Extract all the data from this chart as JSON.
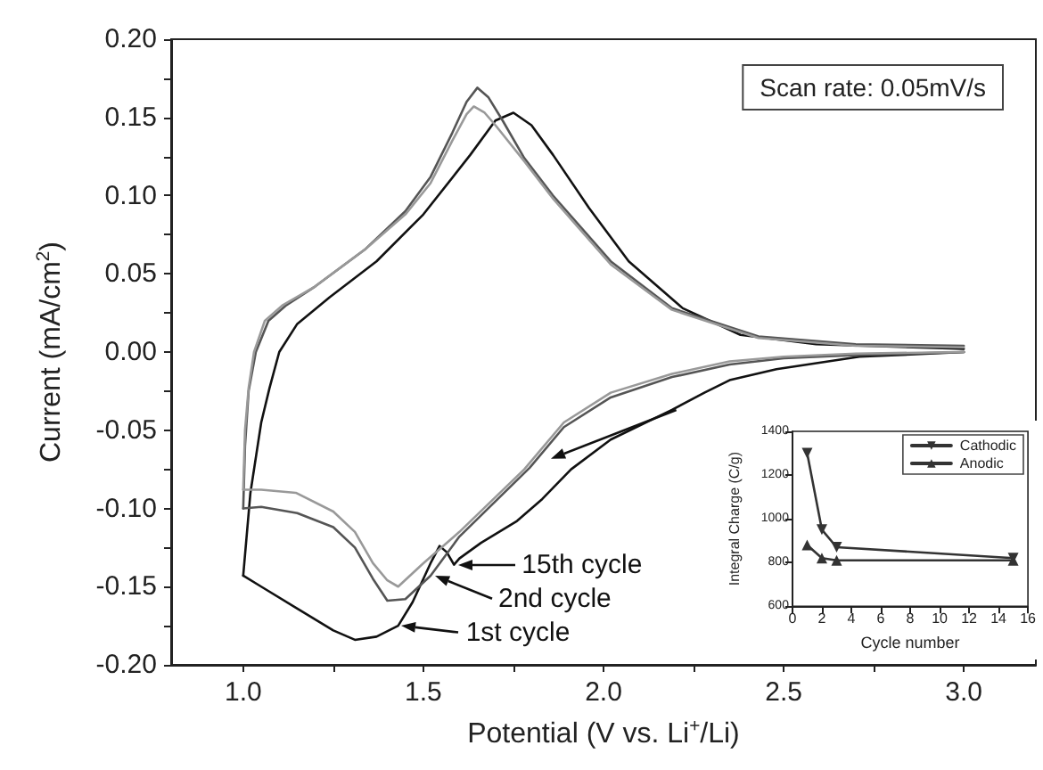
{
  "chart_data": [
    {
      "type": "line",
      "xlabel": "Potential (V vs. Li$^{+}$/Li)",
      "ylabel": "Current (mA/cm$^{2}$)",
      "xlim": [
        0.8,
        3.2
      ],
      "ylim": [
        -0.2,
        0.2
      ],
      "xticks": [
        {
          "value": 1.0,
          "label": "1.0"
        },
        {
          "value": 1.25,
          "label": null
        },
        {
          "value": 1.5,
          "label": "1.5"
        },
        {
          "value": 1.75,
          "label": null
        },
        {
          "value": 2.0,
          "label": "2.0"
        },
        {
          "value": 2.25,
          "label": null
        },
        {
          "value": 2.5,
          "label": "2.5"
        },
        {
          "value": 2.75,
          "label": null
        },
        {
          "value": 3.0,
          "label": "3.0"
        }
      ],
      "yticks": [
        {
          "value": -0.2,
          "label": "-0.20"
        },
        {
          "value": -0.175,
          "label": null
        },
        {
          "value": -0.15,
          "label": "-0.15"
        },
        {
          "value": -0.125,
          "label": null
        },
        {
          "value": -0.1,
          "label": "-0.10"
        },
        {
          "value": -0.075,
          "label": null
        },
        {
          "value": -0.05,
          "label": "-0.05"
        },
        {
          "value": -0.025,
          "label": null
        },
        {
          "value": 0,
          "label": "0.00"
        },
        {
          "value": 0.025,
          "label": null
        },
        {
          "value": 0.05,
          "label": "0.05"
        },
        {
          "value": 0.075,
          "label": null
        },
        {
          "value": 0.1,
          "label": "0.10"
        },
        {
          "value": 0.125,
          "label": null
        },
        {
          "value": 0.15,
          "label": "0.15"
        },
        {
          "value": 0.175,
          "label": null
        },
        {
          "value": 0.2,
          "label": "0.20"
        }
      ],
      "grid": false,
      "legend": false,
      "marker": "none",
      "line_style": "solid",
      "annotations": [
        "Scan rate: 0.05mV/s",
        {
          "text": "1st cycle",
          "x": 1.43,
          "y": -0.175
        },
        {
          "text": "2nd cycle",
          "x": 1.52,
          "y": -0.143
        },
        {
          "text": "15th cycle",
          "x": 1.585,
          "y": -0.136
        }
      ],
      "series": [
        {
          "color": "#111111",
          "x": [
            1.0,
            1.02,
            1.05,
            1.073,
            1.1,
            1.15,
            1.24,
            1.37,
            1.5,
            1.63,
            1.7,
            1.75,
            1.8,
            1.86,
            1.96,
            2.07,
            2.22,
            2.38,
            2.59,
            3.0
          ],
          "values": [
            -0.143,
            -0.09,
            -0.045,
            -0.023,
            0.0,
            0.018,
            0.035,
            0.058,
            0.088,
            0.126,
            0.148,
            0.153,
            0.145,
            0.126,
            0.092,
            0.058,
            0.028,
            0.011,
            0.005,
            0.002
          ]
        },
        {
          "color": "#111111",
          "x": [
            1.0,
            1.05,
            1.15,
            1.25,
            1.31,
            1.37,
            1.43,
            1.47,
            1.52,
            1.545,
            1.565,
            1.585,
            1.6,
            1.66,
            1.76,
            1.83,
            1.91,
            2.02,
            2.19,
            2.28,
            2.35,
            2.48,
            2.71,
            3.0
          ],
          "values": [
            -0.143,
            -0.15,
            -0.164,
            -0.178,
            -0.184,
            -0.182,
            -0.175,
            -0.16,
            -0.135,
            -0.124,
            -0.128,
            -0.136,
            -0.132,
            -0.122,
            -0.108,
            -0.094,
            -0.075,
            -0.056,
            -0.037,
            -0.026,
            -0.018,
            -0.011,
            -0.003,
            0.0
          ]
        },
        {
          "color": "#555555",
          "x": [
            1.0,
            1.005,
            1.015,
            1.035,
            1.07,
            1.12,
            1.2,
            1.34,
            1.45,
            1.52,
            1.58,
            1.62,
            1.65,
            1.68,
            1.72,
            1.78,
            1.86,
            2.02,
            2.19,
            2.43,
            2.7,
            3.0
          ],
          "values": [
            -0.1,
            -0.06,
            -0.025,
            0.0,
            0.02,
            0.03,
            0.042,
            0.066,
            0.09,
            0.112,
            0.14,
            0.16,
            0.169,
            0.163,
            0.148,
            0.124,
            0.1,
            0.058,
            0.028,
            0.01,
            0.005,
            0.004
          ]
        },
        {
          "color": "#555555",
          "x": [
            1.0,
            1.05,
            1.15,
            1.25,
            1.31,
            1.36,
            1.4,
            1.45,
            1.52,
            1.6,
            1.795,
            1.89,
            2.02,
            2.19,
            2.35,
            2.5,
            2.7,
            3.0
          ],
          "values": [
            -0.1,
            -0.099,
            -0.103,
            -0.112,
            -0.125,
            -0.145,
            -0.159,
            -0.158,
            -0.143,
            -0.118,
            -0.074,
            -0.048,
            -0.029,
            -0.016,
            -0.008,
            -0.004,
            -0.002,
            0.0
          ]
        },
        {
          "color": "#999999",
          "x": [
            1.0,
            1.005,
            1.015,
            1.03,
            1.06,
            1.11,
            1.2,
            1.34,
            1.45,
            1.52,
            1.58,
            1.62,
            1.64,
            1.67,
            1.7,
            1.78,
            1.86,
            2.02,
            2.19,
            2.43,
            2.7,
            3.0
          ],
          "values": [
            -0.088,
            -0.05,
            -0.023,
            0.0,
            0.02,
            0.03,
            0.042,
            0.066,
            0.088,
            0.108,
            0.135,
            0.152,
            0.157,
            0.153,
            0.145,
            0.122,
            0.098,
            0.056,
            0.027,
            0.009,
            0.004,
            0.003
          ]
        },
        {
          "color": "#999999",
          "x": [
            1.0,
            1.05,
            1.146,
            1.25,
            1.31,
            1.36,
            1.4,
            1.43,
            1.5,
            1.6,
            1.78,
            1.89,
            2.02,
            2.19,
            2.35,
            2.5,
            2.7,
            3.0
          ],
          "values": [
            -0.088,
            -0.088,
            -0.09,
            -0.102,
            -0.115,
            -0.135,
            -0.146,
            -0.15,
            -0.135,
            -0.115,
            -0.075,
            -0.045,
            -0.026,
            -0.014,
            -0.006,
            -0.003,
            -0.001,
            0.0
          ]
        }
      ]
    },
    {
      "type": "line",
      "xlabel": "Cycle number",
      "ylabel": "Integral Charge (C/g)",
      "xlim": [
        0,
        16
      ],
      "xticks": [
        0,
        2,
        4,
        6,
        8,
        10,
        12,
        14,
        16
      ],
      "ylim": [
        600,
        1400
      ],
      "yticks": [
        600,
        800,
        1000,
        1200,
        1400
      ],
      "grid": false,
      "legend": "top right",
      "line_style": "solid",
      "series": [
        {
          "name": "Cathodic",
          "color": "#333333",
          "marker": "triangle_down",
          "x": [
            1,
            2,
            3,
            15
          ],
          "values": [
            1300,
            950,
            870,
            820
          ]
        },
        {
          "name": "Anodic",
          "color": "#333333",
          "marker": "triangle",
          "x": [
            1,
            2,
            3,
            15
          ],
          "values": [
            880,
            820,
            810,
            810
          ]
        }
      ]
    }
  ]
}
